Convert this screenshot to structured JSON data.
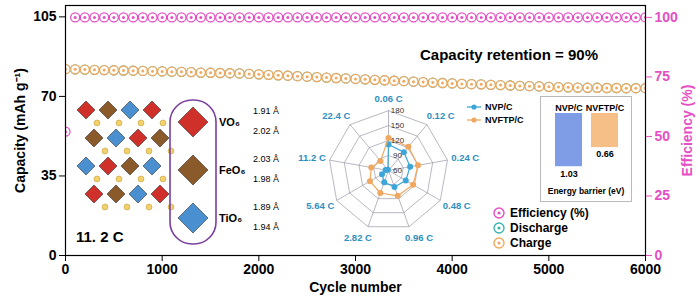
{
  "chart_data": [
    {
      "type": "scatter",
      "x_label": "Cycle number",
      "y_label": "Capacity (mAh g⁻¹)",
      "y2_label": "Efficiency (%)",
      "xlim": [
        0,
        6000
      ],
      "xticks": [
        0,
        1000,
        2000,
        3000,
        4000,
        5000,
        6000
      ],
      "ylim": [
        0,
        110
      ],
      "yticks": [
        0,
        35,
        70,
        105
      ],
      "y2lim": [
        0,
        105
      ],
      "y2ticks": [
        0,
        25,
        50,
        75,
        100
      ],
      "x": [
        0,
        100,
        200,
        300,
        400,
        500,
        600,
        700,
        800,
        900,
        1000,
        1100,
        1200,
        1300,
        1400,
        1500,
        1600,
        1700,
        1800,
        1900,
        2000,
        2100,
        2200,
        2300,
        2400,
        2500,
        2600,
        2700,
        2800,
        2900,
        3000,
        3100,
        3200,
        3300,
        3400,
        3500,
        3600,
        3700,
        3800,
        3900,
        4000,
        4100,
        4200,
        4300,
        4400,
        4500,
        4600,
        4700,
        4800,
        4900,
        5000,
        5100,
        5200,
        5300,
        5400,
        5500,
        5600,
        5700,
        5800,
        5900,
        6000
      ],
      "series": [
        {
          "name": "Efficiency (%)",
          "color": "#e64ec4",
          "axis": "y2",
          "marker": "circle",
          "values": [
            52,
            100,
            100,
            100,
            100,
            100,
            100,
            100,
            100,
            100,
            100,
            100,
            100,
            100,
            100,
            100,
            100,
            100,
            100,
            100,
            100,
            100,
            100,
            100,
            100,
            100,
            100,
            100,
            100,
            100,
            100,
            100,
            100,
            100,
            100,
            100,
            100,
            100,
            100,
            100,
            100,
            100,
            100,
            100,
            100,
            100,
            100,
            100,
            100,
            100,
            100,
            100,
            100,
            100,
            100,
            100,
            100,
            100,
            100,
            100,
            100
          ]
        },
        {
          "name": "Discharge",
          "color": "#3cb5ad",
          "marker": "circle",
          "values": [
            82.0,
            81.9,
            81.8,
            81.7,
            81.6,
            81.5,
            81.4,
            81.3,
            81.2,
            81.1,
            81.0,
            80.9,
            80.8,
            80.7,
            80.5,
            80.4,
            80.3,
            80.2,
            80.1,
            79.9,
            79.7,
            79.5,
            79.3,
            79.1,
            78.9,
            78.7,
            78.5,
            78.3,
            78.1,
            77.9,
            77.7,
            77.5,
            77.3,
            77.1,
            76.9,
            76.7,
            76.5,
            76.3,
            76.1,
            75.9,
            75.7,
            75.5,
            75.4,
            75.3,
            75.1,
            75.0,
            74.8,
            74.6,
            74.5,
            74.4,
            74.2,
            74.1,
            74.0,
            73.9,
            73.8,
            73.8,
            73.7,
            73.7,
            73.6,
            73.6,
            73.6
          ]
        },
        {
          "name": "Charge",
          "color": "#f0a95e",
          "marker": "circle",
          "values": [
            82.0,
            81.9,
            81.8,
            81.7,
            81.6,
            81.5,
            81.4,
            81.3,
            81.2,
            81.1,
            81.0,
            80.9,
            80.8,
            80.7,
            80.5,
            80.4,
            80.3,
            80.2,
            80.1,
            79.9,
            79.7,
            79.5,
            79.3,
            79.1,
            78.9,
            78.7,
            78.5,
            78.3,
            78.1,
            77.9,
            77.7,
            77.5,
            77.3,
            77.1,
            76.9,
            76.7,
            76.5,
            76.3,
            76.1,
            75.9,
            75.7,
            75.5,
            75.4,
            75.3,
            75.1,
            75.0,
            74.8,
            74.6,
            74.5,
            74.4,
            74.2,
            74.1,
            74.0,
            73.9,
            73.8,
            73.8,
            73.7,
            73.7,
            73.6,
            73.6,
            73.6
          ]
        }
      ],
      "annotations": [
        "Capacity retention = 90%",
        "11. 2 C"
      ],
      "legend": "bottom-right"
    },
    {
      "type": "radar",
      "categories": [
        "0.06 C",
        "0.12 C",
        "0.24 C",
        "0.48 C",
        "0.96 C",
        "2.82 C",
        "5.64 C",
        "11.2 C",
        "22.4 C"
      ],
      "rlim": [
        60,
        180
      ],
      "rticks": [
        60,
        90,
        120,
        150,
        180
      ],
      "series": [
        {
          "name": "NVP/C",
          "color": "#3da6d9",
          "values": [
            112,
            108,
            104,
            100,
            95,
            85,
            75,
            66,
            62
          ]
        },
        {
          "name": "NVFTP/C",
          "color": "#f0a860",
          "values": [
            125,
            122,
            120,
            117,
            114,
            108,
            103,
            95,
            85
          ]
        }
      ],
      "legend": "right"
    },
    {
      "type": "bar",
      "categories": [
        "NVP/C",
        "NVFTP/C"
      ],
      "values": [
        1.03,
        0.66
      ],
      "colors": [
        "#7f9de6",
        "#f6bf88"
      ],
      "x_label": "Energy barrier (eV)",
      "ylim": [
        0,
        1.2
      ],
      "data_labels": true,
      "tick_labels": "x"
    }
  ],
  "structure": {
    "polyhedra": [
      {
        "label": "VO₆",
        "bonds": [
          "1.91 Å",
          "2.02 Å"
        ]
      },
      {
        "label": "FeO₆",
        "bonds": [
          "2.03 Å",
          "1.98 Å"
        ]
      },
      {
        "label": "TiO₆",
        "bonds": [
          "1.89 Å",
          "1.94 Å"
        ]
      }
    ]
  }
}
